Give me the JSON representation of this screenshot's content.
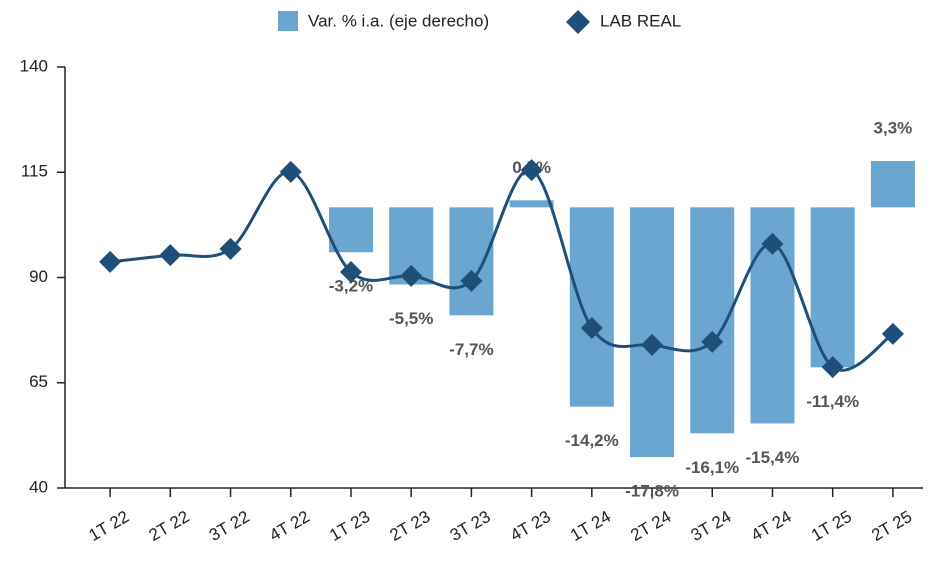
{
  "chart_data": {
    "type": "bar-line",
    "categories": [
      "1T 22",
      "2T 22",
      "3T 22",
      "4T 22",
      "1T 23",
      "2T 23",
      "3T 23",
      "4T 23",
      "1T 24",
      "2T 24",
      "3T 24",
      "4T 24",
      "1T 25",
      "2T 25"
    ],
    "series": [
      {
        "name": "Var. % i.a. (eje derecho)",
        "type": "bar",
        "axis": "y2",
        "color": "#6aa6cf",
        "values": [
          null,
          null,
          null,
          null,
          -3.2,
          -5.5,
          -7.7,
          0.5,
          -14.2,
          -17.8,
          -16.1,
          -15.4,
          -11.4,
          3.3
        ],
        "value_labels": [
          null,
          null,
          null,
          null,
          "-3,2%",
          "-5,5%",
          "-7,7%",
          "0,5%",
          "-14,2%",
          "-17,8%",
          "-16,1%",
          "-15,4%",
          "-11,4%",
          "3,3%"
        ]
      },
      {
        "name": "LAB REAL",
        "type": "line",
        "color": "#1f4e79",
        "values": [
          93.7,
          95.3,
          96.8,
          115.1,
          91.3,
          90.4,
          89.2,
          115.5,
          78,
          74,
          74.7,
          98,
          68.7,
          76.6
        ]
      }
    ],
    "ylim": [
      40,
      140
    ],
    "yticks": [
      40,
      65,
      90,
      115,
      140
    ],
    "y2lim": [
      -20,
      10
    ]
  }
}
